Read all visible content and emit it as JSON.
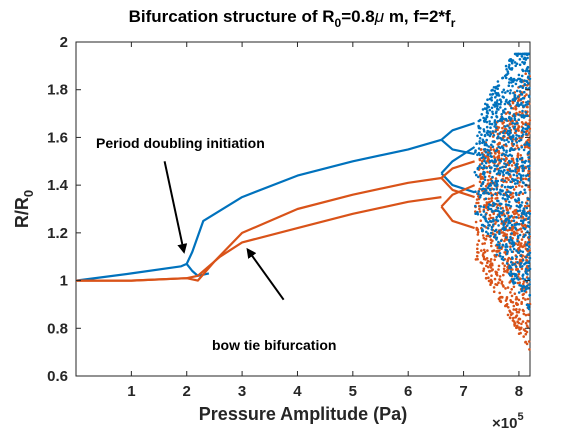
{
  "chart_data": {
    "type": "scatter",
    "title": {
      "prefix": "Bifurcation structure  of R",
      "sub1": "0",
      "middle": "=0.8",
      "mu": "μ",
      "suffix": " m, f=2*f",
      "sub2": "r"
    },
    "xlabel": "Pressure Amplitude (Pa)",
    "ylabel": {
      "main": "R/R",
      "sub": "0"
    },
    "x_multiplier": {
      "base": "×10",
      "exp": "5"
    },
    "xlim": [
      0,
      8.2
    ],
    "ylim": [
      0.6,
      2.0
    ],
    "xticks": [
      1,
      2,
      3,
      4,
      5,
      6,
      7,
      8
    ],
    "yticks": [
      0.6,
      0.8,
      1,
      1.2,
      1.4,
      1.6,
      1.8,
      2
    ],
    "x_unit_scale": 100000,
    "grid": false,
    "colors": {
      "blue": "#0072BD",
      "orange": "#D95319"
    },
    "series": [
      {
        "color": "blue",
        "branches": [
          {
            "x": [
              0,
              1,
              1.9,
              2.0,
              2.1,
              2.3,
              3,
              4,
              5,
              6,
              6.6
            ],
            "y": [
              1.0,
              1.03,
              1.06,
              1.07,
              1.12,
              1.25,
              1.35,
              1.44,
              1.5,
              1.55,
              1.59
            ]
          },
          {
            "x": [
              2.0,
              2.1,
              2.2,
              2.4
            ],
            "y": [
              1.07,
              1.04,
              1.02,
              1.03
            ]
          },
          {
            "x": [
              6.6,
              6.8,
              7.2
            ],
            "y": [
              1.59,
              1.63,
              1.66
            ]
          },
          {
            "x": [
              6.6,
              6.8,
              7.2
            ],
            "y": [
              1.59,
              1.55,
              1.53
            ]
          },
          {
            "x": [
              6.6,
              6.8,
              7.2
            ],
            "y": [
              1.45,
              1.5,
              1.56
            ]
          },
          {
            "x": [
              6.6,
              6.8,
              7.2
            ],
            "y": [
              1.45,
              1.4,
              1.37
            ]
          }
        ]
      },
      {
        "color": "orange",
        "branches": [
          {
            "x": [
              0,
              1,
              2,
              2.2,
              2.6,
              3,
              4,
              5,
              6,
              6.6
            ],
            "y": [
              1.0,
              1.0,
              1.01,
              1.02,
              1.1,
              1.16,
              1.22,
              1.28,
              1.33,
              1.35
            ]
          },
          {
            "x": [
              0,
              1,
              2,
              2.2,
              2.5,
              3,
              4,
              5,
              6,
              6.6
            ],
            "y": [
              1.0,
              1.0,
              1.01,
              1.0,
              1.08,
              1.2,
              1.3,
              1.36,
              1.41,
              1.43
            ]
          },
          {
            "x": [
              6.6,
              6.8,
              7.2
            ],
            "y": [
              1.43,
              1.47,
              1.5
            ]
          },
          {
            "x": [
              6.6,
              6.8,
              7.2
            ],
            "y": [
              1.43,
              1.38,
              1.35
            ]
          },
          {
            "x": [
              6.6,
              6.8,
              7.2
            ],
            "y": [
              1.31,
              1.36,
              1.4
            ]
          },
          {
            "x": [
              6.6,
              6.8,
              7.2
            ],
            "y": [
              1.31,
              1.25,
              1.22
            ]
          }
        ]
      }
    ],
    "chaotic_region": {
      "x_range": [
        7.2,
        8.2
      ],
      "y_range": [
        0.65,
        1.95
      ]
    },
    "annotations": [
      {
        "text": "Period doubling initiation",
        "arrow_from": [
          1.6,
          1.5
        ],
        "arrow_to": [
          1.95,
          1.12
        ]
      },
      {
        "text": "bow tie bifurcation",
        "arrow_from": [
          3.75,
          0.92
        ],
        "arrow_to": [
          3.1,
          1.13
        ]
      }
    ]
  }
}
